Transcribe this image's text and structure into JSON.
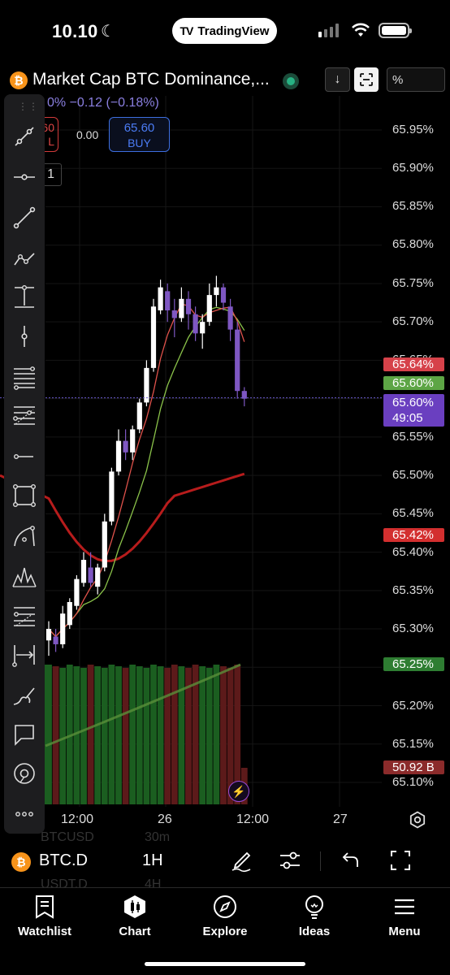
{
  "status_bar": {
    "time": "10.10",
    "app_pill": "TradingView",
    "tv_logo": "TV"
  },
  "header": {
    "title": "Market Cap BTC Dominance,...",
    "change": "0% −0.12 (−0.18%)",
    "scale_button": "%"
  },
  "trade": {
    "sell_price": "60",
    "sell_label": "L",
    "spread": "0.00",
    "buy_price": "65.60",
    "buy_label": "BUY",
    "frame_label": "1"
  },
  "price_axis": {
    "labels": [
      "65.95%",
      "65.90%",
      "65.85%",
      "65.80%",
      "65.75%",
      "65.70%",
      "65.65%",
      "65.55%",
      "65.50%",
      "65.45%",
      "65.40%",
      "65.35%",
      "65.30%",
      "65.20%",
      "65.15%",
      "65.10%"
    ],
    "badges": {
      "ma_red": "65.64%",
      "ma_green": "65.60%",
      "last_price": "65.60%",
      "countdown": "49:05",
      "ma_dark_red": "65.42%",
      "volume_ma": "65.25%",
      "volume": "50.92 B"
    }
  },
  "time_axis": [
    "12:00",
    "26",
    "12:00",
    "27"
  ],
  "ghost_rows": {
    "sym1": "BTCUSD",
    "int1": "30m",
    "sym2": "USDT.D",
    "int2": "4H"
  },
  "symbol_bar": {
    "symbol": "BTC.D",
    "interval": "1H"
  },
  "nav": {
    "watchlist": "Watchlist",
    "chart": "Chart",
    "explore": "Explore",
    "ideas": "Ideas",
    "menu": "Menu"
  },
  "colors": {
    "up_candle": "#ffffff",
    "down_candle": "#7e57c2",
    "ma_red": "#e0524b",
    "ma_green": "#8bc34a",
    "ma_dark_red": "#b71c1c",
    "volume_green": "#1b5e20",
    "volume_red": "#5c1a1a"
  },
  "chart_data": {
    "type": "candlestick",
    "interval": "1H",
    "y_unit": "%",
    "ylim": [
      65.09,
      65.98
    ],
    "candles": [
      {
        "o": 65.285,
        "h": 65.31,
        "l": 65.265,
        "c": 65.3,
        "dir": "up"
      },
      {
        "o": 65.29,
        "h": 65.3,
        "l": 65.27,
        "c": 65.28,
        "dir": "down"
      },
      {
        "o": 65.28,
        "h": 65.33,
        "l": 65.275,
        "c": 65.32,
        "dir": "up"
      },
      {
        "o": 65.305,
        "h": 65.34,
        "l": 65.3,
        "c": 65.335,
        "dir": "up"
      },
      {
        "o": 65.33,
        "h": 65.37,
        "l": 65.325,
        "c": 65.365,
        "dir": "up"
      },
      {
        "o": 65.36,
        "h": 65.4,
        "l": 65.355,
        "c": 65.39,
        "dir": "up"
      },
      {
        "o": 65.38,
        "h": 65.4,
        "l": 65.355,
        "c": 65.36,
        "dir": "down"
      },
      {
        "o": 65.355,
        "h": 65.385,
        "l": 65.345,
        "c": 65.38,
        "dir": "up"
      },
      {
        "o": 65.38,
        "h": 65.45,
        "l": 65.375,
        "c": 65.44,
        "dir": "up"
      },
      {
        "o": 65.44,
        "h": 65.51,
        "l": 65.435,
        "c": 65.505,
        "dir": "up"
      },
      {
        "o": 65.505,
        "h": 65.56,
        "l": 65.5,
        "c": 65.545,
        "dir": "up"
      },
      {
        "o": 65.545,
        "h": 65.56,
        "l": 65.52,
        "c": 65.53,
        "dir": "down"
      },
      {
        "o": 65.53,
        "h": 65.565,
        "l": 65.52,
        "c": 65.56,
        "dir": "up"
      },
      {
        "o": 65.56,
        "h": 65.6,
        "l": 65.555,
        "c": 65.595,
        "dir": "up"
      },
      {
        "o": 65.595,
        "h": 65.65,
        "l": 65.59,
        "c": 65.64,
        "dir": "up"
      },
      {
        "o": 65.64,
        "h": 65.73,
        "l": 65.635,
        "c": 65.72,
        "dir": "up"
      },
      {
        "o": 65.715,
        "h": 65.755,
        "l": 65.71,
        "c": 65.745,
        "dir": "up"
      },
      {
        "o": 65.74,
        "h": 65.75,
        "l": 65.7,
        "c": 65.715,
        "dir": "down"
      },
      {
        "o": 65.715,
        "h": 65.73,
        "l": 65.68,
        "c": 65.705,
        "dir": "down"
      },
      {
        "o": 65.705,
        "h": 65.745,
        "l": 65.7,
        "c": 65.73,
        "dir": "up"
      },
      {
        "o": 65.73,
        "h": 65.74,
        "l": 65.69,
        "c": 65.71,
        "dir": "down"
      },
      {
        "o": 65.71,
        "h": 65.72,
        "l": 65.675,
        "c": 65.685,
        "dir": "down"
      },
      {
        "o": 65.685,
        "h": 65.71,
        "l": 65.665,
        "c": 65.7,
        "dir": "up"
      },
      {
        "o": 65.7,
        "h": 65.75,
        "l": 65.695,
        "c": 65.735,
        "dir": "up"
      },
      {
        "o": 65.735,
        "h": 65.76,
        "l": 65.72,
        "c": 65.745,
        "dir": "up"
      },
      {
        "o": 65.745,
        "h": 65.75,
        "l": 65.715,
        "c": 65.725,
        "dir": "down"
      },
      {
        "o": 65.72,
        "h": 65.73,
        "l": 65.675,
        "c": 65.69,
        "dir": "down"
      },
      {
        "o": 65.69,
        "h": 65.7,
        "l": 65.6,
        "c": 65.61,
        "dir": "down"
      },
      {
        "o": 65.61,
        "h": 65.615,
        "l": 65.59,
        "c": 65.6,
        "dir": "down"
      }
    ]
  }
}
